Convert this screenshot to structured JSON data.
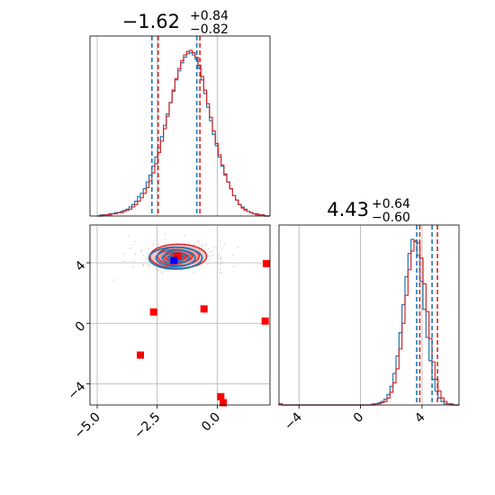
{
  "colors": {
    "blue": "#1f77b4",
    "red": "#d62728",
    "grid": "#b0b0b0",
    "marker_red": "#ff0000",
    "marker_blue": "#0000ff"
  },
  "titles": {
    "top": {
      "main": "−1.62",
      "sup": "+0.84",
      "sub": "−0.82"
    },
    "right": {
      "main": "4.43",
      "sup": "+0.64",
      "sub": "−0.60"
    }
  },
  "chart_data": [
    {
      "type": "histogram",
      "panel": "top-left marginal",
      "x_range": [
        -5.3,
        2.2
      ],
      "grid": true,
      "quantile_lines": {
        "blue": [
          -2.72,
          -0.85
        ],
        "red": [
          -2.46,
          -0.72
        ]
      },
      "series": [
        {
          "color": "blue",
          "bin_edges_range": [
            -5.0,
            2.2
          ],
          "counts": [
            0,
            1,
            1,
            1,
            2,
            2,
            3,
            3,
            4,
            5,
            6,
            8,
            10,
            13,
            17,
            20,
            24,
            30,
            36,
            44,
            52,
            60,
            70,
            80,
            90,
            100,
            110,
            120,
            128,
            135,
            140,
            143,
            144,
            142,
            138,
            130,
            120,
            108,
            96,
            84,
            72,
            62,
            52,
            44,
            36,
            30,
            24,
            18,
            14,
            10,
            8,
            6,
            4,
            3,
            2,
            2,
            1,
            1,
            0,
            0
          ]
        },
        {
          "color": "red",
          "bin_edges_range": [
            -5.0,
            2.2
          ],
          "counts": [
            0,
            0,
            1,
            1,
            1,
            2,
            2,
            3,
            3,
            4,
            5,
            6,
            8,
            10,
            13,
            16,
            20,
            25,
            31,
            38,
            46,
            56,
            66,
            77,
            88,
            100,
            111,
            121,
            130,
            137,
            142,
            145,
            146,
            144,
            140,
            133,
            123,
            111,
            99,
            87,
            75,
            64,
            54,
            45,
            37,
            30,
            24,
            18,
            14,
            10,
            7,
            5,
            4,
            3,
            2,
            1,
            1,
            1,
            0,
            0
          ]
        }
      ]
    },
    {
      "type": "histogram",
      "panel": "bottom-right marginal",
      "x_range": [
        -5.3,
        6.4
      ],
      "xticks": [
        "−4",
        "0",
        "4"
      ],
      "xtick_values": [
        -4,
        0,
        4
      ],
      "grid": true,
      "quantile_lines": {
        "blue": [
          3.65,
          4.65
        ],
        "red": [
          3.85,
          5.0
        ]
      },
      "series": [
        {
          "color": "blue",
          "bin_edges_range": [
            -5.3,
            6.4
          ],
          "counts": [
            1,
            0,
            0,
            0,
            0,
            0,
            0,
            0,
            0,
            0,
            0,
            0,
            0,
            0,
            0,
            0,
            0,
            0,
            0,
            0,
            0,
            0,
            0,
            0,
            0,
            0,
            0,
            0,
            0,
            0,
            0,
            1,
            1,
            2,
            3,
            5,
            9,
            16,
            27,
            42,
            62,
            86,
            110,
            130,
            142,
            140,
            128,
            106,
            82,
            58,
            38,
            22,
            12,
            6,
            3,
            1,
            1,
            0,
            0,
            0
          ]
        },
        {
          "color": "red",
          "bin_edges_range": [
            -5.3,
            6.4
          ],
          "counts": [
            1,
            0,
            0,
            0,
            0,
            0,
            0,
            0,
            0,
            0,
            0,
            0,
            0,
            0,
            0,
            0,
            0,
            0,
            0,
            0,
            0,
            0,
            0,
            0,
            0,
            0,
            0,
            0,
            0,
            0,
            0,
            0,
            1,
            1,
            2,
            3,
            6,
            11,
            19,
            31,
            48,
            70,
            94,
            116,
            132,
            141,
            139,
            126,
            104,
            80,
            57,
            37,
            22,
            12,
            6,
            3,
            1,
            1,
            0,
            0
          ]
        }
      ]
    },
    {
      "type": "scatter",
      "panel": "bottom-left joint",
      "x_range": [
        -5.3,
        2.2
      ],
      "y_range": [
        -5.4,
        6.5
      ],
      "xticks": [
        "−5.0",
        "−2.5",
        "0.0"
      ],
      "xtick_values": [
        -5.0,
        -2.5,
        0.0
      ],
      "yticks": [
        "−4",
        "0",
        "4"
      ],
      "ytick_values": [
        -4,
        0,
        4
      ],
      "grid": true,
      "contour_center": [
        -1.62,
        4.43
      ],
      "contour_levels": [
        {
          "sx": 0.55,
          "sy": 0.5
        },
        {
          "sx": 0.95,
          "sy": 0.95
        },
        {
          "sx": 1.4,
          "sy": 1.45
        },
        {
          "sx": 1.9,
          "sy": 1.9
        }
      ],
      "markers": {
        "red": [
          [
            -1.65,
            4.45
          ],
          [
            -2.65,
            0.75
          ],
          [
            -0.55,
            0.95
          ],
          [
            2.05,
            3.95
          ],
          [
            2.0,
            0.15
          ],
          [
            -3.2,
            -2.1
          ],
          [
            0.15,
            -4.85
          ],
          [
            0.25,
            -5.25
          ]
        ],
        "blue": [
          [
            -1.8,
            4.15
          ]
        ]
      }
    }
  ]
}
